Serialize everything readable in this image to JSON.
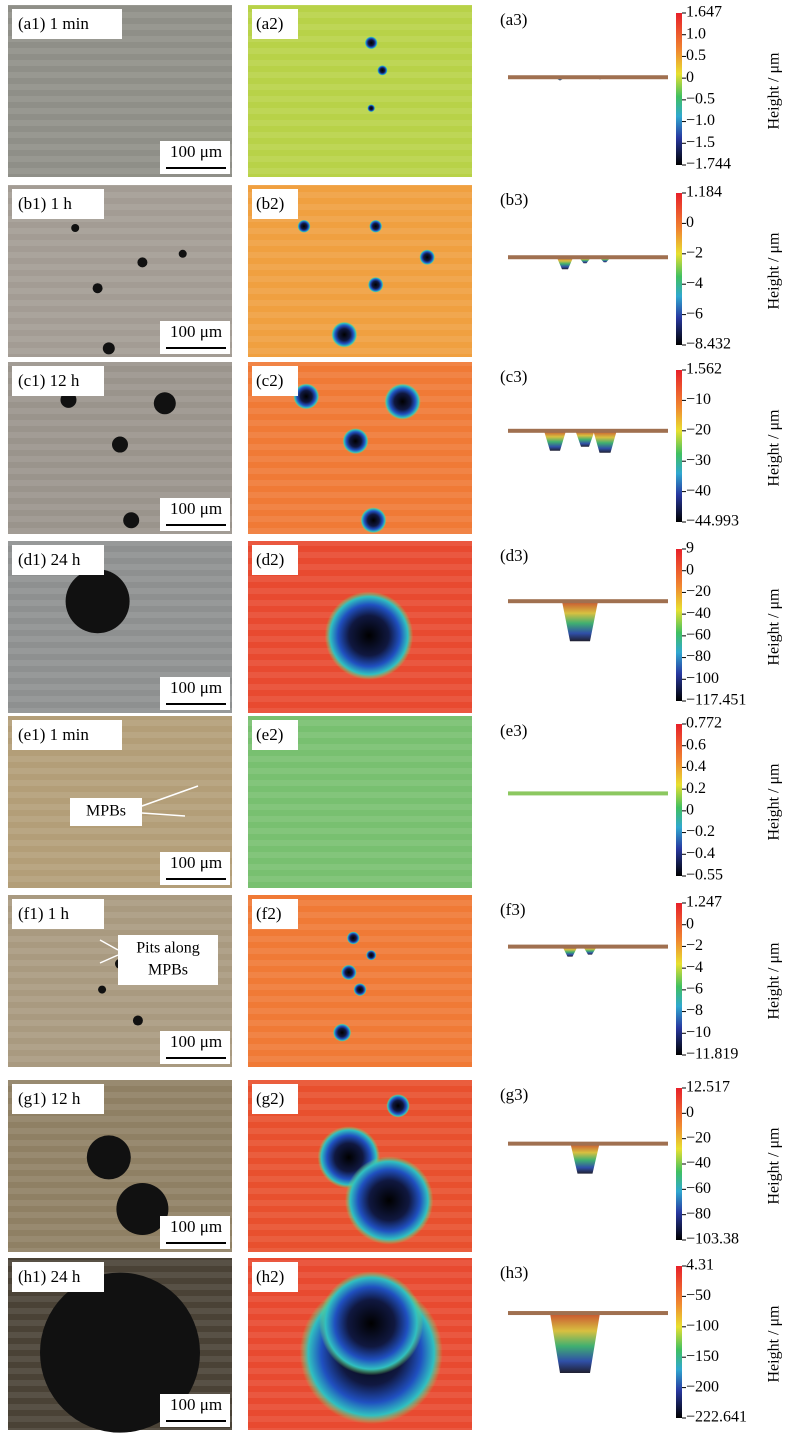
{
  "panels": [
    {
      "micrograph_label": "(a1) 1 min",
      "scale_bar": "100 μm",
      "map_label": "(a2)",
      "profile_label": "(a3)",
      "colorbar": {
        "title": "Height / μm",
        "ticks": [
          "1.647",
          "1.0",
          "0.5",
          "0",
          "−0.5",
          "−1.0",
          "−1.5",
          "−1.744"
        ]
      }
    },
    {
      "micrograph_label": "(b1) 1 h",
      "scale_bar": "100 μm",
      "map_label": "(b2)",
      "profile_label": "(b3)",
      "colorbar": {
        "title": "Height / μm",
        "ticks": [
          "1.184",
          "0",
          "−2",
          "−4",
          "−6",
          "−8.432"
        ]
      }
    },
    {
      "micrograph_label": "(c1) 12 h",
      "scale_bar": "100 μm",
      "map_label": "(c2)",
      "profile_label": "(c3)",
      "colorbar": {
        "title": "Height / μm",
        "ticks": [
          "1.562",
          "−10",
          "−20",
          "−30",
          "−40",
          "−44.993"
        ]
      }
    },
    {
      "micrograph_label": "(d1) 24 h",
      "scale_bar": "100 μm",
      "map_label": "(d2)",
      "profile_label": "(d3)",
      "colorbar": {
        "title": "Height / μm",
        "ticks": [
          "9",
          "0",
          "−20",
          "−40",
          "−60",
          "−80",
          "−100",
          "−117.451"
        ]
      }
    },
    {
      "micrograph_label": "(e1) 1 min",
      "scale_bar": "100 μm",
      "map_label": "(e2)",
      "profile_label": "(e3)",
      "annotation": [
        "MPBs"
      ],
      "colorbar": {
        "title": "Height / μm",
        "ticks": [
          "0.772",
          "0.6",
          "0.4",
          "0.2",
          "0",
          "−0.2",
          "−0.4",
          "−0.55"
        ]
      }
    },
    {
      "micrograph_label": "(f1) 1 h",
      "scale_bar": "100 μm",
      "map_label": "(f2)",
      "profile_label": "(f3)",
      "annotation": [
        "Pits along",
        "MPBs"
      ],
      "colorbar": {
        "title": "Height / μm",
        "ticks": [
          "1.247",
          "0",
          "−2",
          "−4",
          "−6",
          "−8",
          "−10",
          "−11.819"
        ]
      }
    },
    {
      "micrograph_label": "(g1) 12 h",
      "scale_bar": "100 μm",
      "map_label": "(g2)",
      "profile_label": "(g3)",
      "colorbar": {
        "title": "Height / μm",
        "ticks": [
          "12.517",
          "0",
          "−20",
          "−40",
          "−60",
          "−80",
          "−103.38"
        ]
      }
    },
    {
      "micrograph_label": "(h1) 24 h",
      "scale_bar": "100 μm",
      "map_label": "(h2)",
      "profile_label": "(h3)",
      "colorbar": {
        "title": "Height / μm",
        "ticks": [
          "4.31",
          "−50",
          "−100",
          "−150",
          "−200",
          "−222.641"
        ]
      }
    }
  ]
}
